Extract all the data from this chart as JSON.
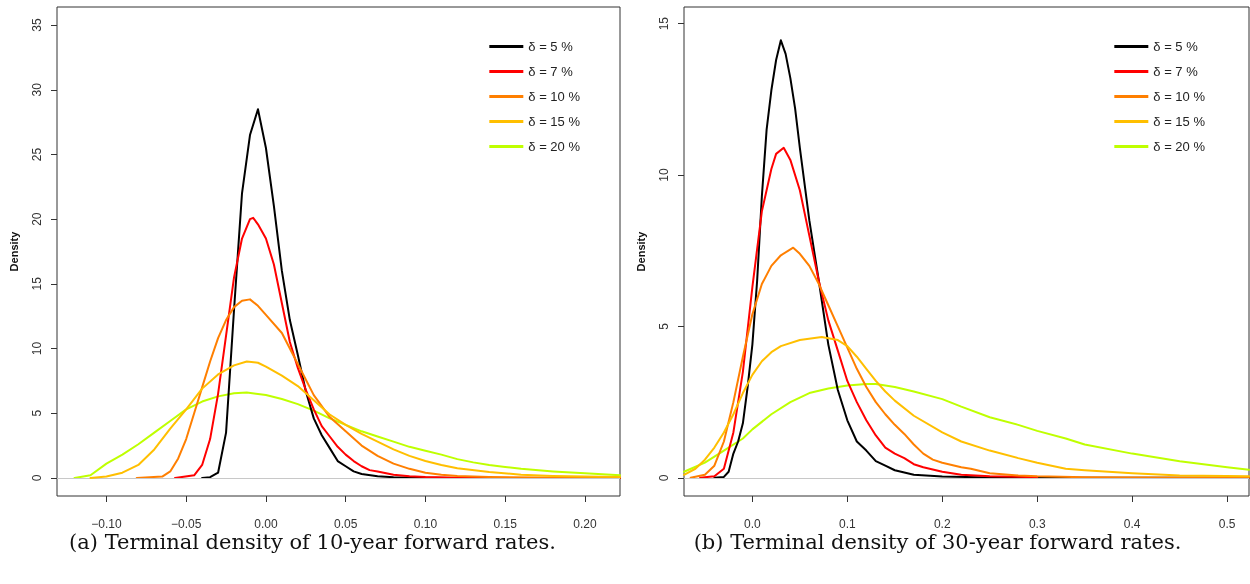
{
  "chart_data": [
    {
      "type": "line",
      "ylabel": "Density",
      "annotations": [
        "(a) Terminal density of 10-year forward rates."
      ],
      "xlim": [
        -0.131,
        0.222
      ],
      "ylim": [
        -1.4,
        36.4
      ],
      "xticks": [
        {
          "value": -0.1,
          "label": "−0.10"
        },
        {
          "value": -0.05,
          "label": "−0.05"
        },
        {
          "value": 0,
          "label": "0.00"
        },
        {
          "value": 0.05,
          "label": "0.05"
        },
        {
          "value": 0.1,
          "label": "0.10"
        },
        {
          "value": 0.15,
          "label": "0.15"
        },
        {
          "value": 0.2,
          "label": "0.20"
        }
      ],
      "yticks": [
        0,
        5,
        10,
        15,
        20,
        25,
        30,
        35
      ],
      "grid": false,
      "legend": "top right",
      "marker": "none",
      "line_style": "solid",
      "ref_lines": [
        {
          "axis": "y",
          "value": 0,
          "color": "#c8c8c8"
        }
      ],
      "series": [
        {
          "name": "δ = 5 %",
          "color": "#000000",
          "x": [
            -0.04,
            -0.035,
            -0.03,
            -0.025,
            -0.02,
            -0.015,
            -0.01,
            -0.005,
            0,
            0.005,
            0.01,
            0.015,
            0.02,
            0.025,
            0.03,
            0.035,
            0.04,
            0.045,
            0.05,
            0.055,
            0.06,
            0.07,
            0.08,
            0.1,
            0.12,
            0.222
          ],
          "values": [
            0,
            0.05,
            0.4,
            3.5,
            13,
            22,
            26.5,
            28.5,
            25.5,
            21,
            16,
            12.2,
            9.5,
            6.7,
            4.6,
            3.3,
            2.3,
            1.3,
            0.9,
            0.5,
            0.3,
            0.12,
            0.05,
            0.01,
            0,
            0
          ]
        },
        {
          "name": "δ = 7 %",
          "color": "#ff0000",
          "x": [
            -0.057,
            -0.045,
            -0.04,
            -0.035,
            -0.03,
            -0.025,
            -0.02,
            -0.015,
            -0.01,
            -0.008,
            -0.005,
            0,
            0.005,
            0.01,
            0.015,
            0.02,
            0.025,
            0.03,
            0.035,
            0.04,
            0.045,
            0.05,
            0.055,
            0.06,
            0.065,
            0.07,
            0.08,
            0.09,
            0.1,
            0.12,
            0.15,
            0.222
          ],
          "values": [
            0,
            0.2,
            1,
            3,
            6.5,
            11,
            15.5,
            18.5,
            20,
            20.1,
            19.6,
            18.5,
            16.5,
            13.5,
            10.5,
            8.5,
            6.8,
            5.3,
            4,
            3.2,
            2.4,
            1.8,
            1.3,
            0.9,
            0.6,
            0.5,
            0.25,
            0.12,
            0.06,
            0.02,
            0,
            0
          ]
        },
        {
          "name": "δ = 10 %",
          "color": "#ff7f00",
          "x": [
            -0.081,
            -0.065,
            -0.06,
            -0.055,
            -0.05,
            -0.045,
            -0.04,
            -0.035,
            -0.03,
            -0.025,
            -0.02,
            -0.015,
            -0.01,
            -0.005,
            0,
            0.01,
            0.02,
            0.03,
            0.04,
            0.05,
            0.06,
            0.07,
            0.08,
            0.09,
            0.1,
            0.11,
            0.12,
            0.14,
            0.17,
            0.222
          ],
          "values": [
            0,
            0.1,
            0.5,
            1.5,
            3,
            5,
            7,
            9,
            10.8,
            12.2,
            13.2,
            13.7,
            13.8,
            13.3,
            12.6,
            11.2,
            8.8,
            6.4,
            4.7,
            3.6,
            2.5,
            1.7,
            1.1,
            0.7,
            0.4,
            0.25,
            0.15,
            0.07,
            0.03,
            0.01
          ]
        },
        {
          "name": "δ = 15 %",
          "color": "#ffbf00",
          "x": [
            -0.11,
            -0.1,
            -0.09,
            -0.08,
            -0.07,
            -0.06,
            -0.05,
            -0.04,
            -0.03,
            -0.02,
            -0.012,
            -0.005,
            0,
            0.01,
            0.02,
            0.03,
            0.04,
            0.05,
            0.06,
            0.07,
            0.08,
            0.09,
            0.1,
            0.11,
            0.12,
            0.14,
            0.16,
            0.18,
            0.2,
            0.222
          ],
          "values": [
            0,
            0.1,
            0.4,
            1,
            2.2,
            3.8,
            5.3,
            6.9,
            8,
            8.7,
            9,
            8.9,
            8.6,
            7.9,
            7.1,
            6,
            4.9,
            4.1,
            3.4,
            2.8,
            2.2,
            1.7,
            1.3,
            1,
            0.75,
            0.45,
            0.25,
            0.15,
            0.1,
            0.07
          ]
        },
        {
          "name": "δ = 20 %",
          "color": "#bfff00",
          "x": [
            -0.12,
            -0.11,
            -0.1,
            -0.09,
            -0.08,
            -0.07,
            -0.06,
            -0.05,
            -0.04,
            -0.03,
            -0.02,
            -0.012,
            0,
            0.01,
            0.02,
            0.03,
            0.04,
            0.05,
            0.06,
            0.07,
            0.08,
            0.09,
            0.1,
            0.11,
            0.12,
            0.13,
            0.14,
            0.15,
            0.16,
            0.18,
            0.2,
            0.222
          ],
          "values": [
            0,
            0.2,
            1.1,
            1.8,
            2.6,
            3.5,
            4.4,
            5.3,
            5.9,
            6.3,
            6.55,
            6.6,
            6.4,
            6.1,
            5.7,
            5.2,
            4.6,
            4.1,
            3.6,
            3.2,
            2.8,
            2.4,
            2.1,
            1.8,
            1.45,
            1.2,
            1,
            0.85,
            0.7,
            0.5,
            0.35,
            0.2
          ]
        }
      ]
    },
    {
      "type": "line",
      "ylabel": "Density",
      "annotations": [
        "(b) Terminal density of 30-year forward rates."
      ],
      "xlim": [
        -0.072,
        0.523
      ],
      "ylim": [
        -0.6,
        15.55
      ],
      "xticks": [
        {
          "value": 0,
          "label": "0.0"
        },
        {
          "value": 0.1,
          "label": "0.1"
        },
        {
          "value": 0.2,
          "label": "0.2"
        },
        {
          "value": 0.3,
          "label": "0.3"
        },
        {
          "value": 0.4,
          "label": "0.4"
        },
        {
          "value": 0.5,
          "label": "0.5"
        }
      ],
      "yticks": [
        0,
        5,
        10,
        15
      ],
      "grid": false,
      "legend": "top right",
      "marker": "none",
      "line_style": "solid",
      "ref_lines": [
        {
          "axis": "y",
          "value": 0,
          "color": "#c8c8c8"
        }
      ],
      "series": [
        {
          "name": "δ = 5 %",
          "color": "#000000",
          "x": [
            -0.04,
            -0.03,
            -0.025,
            -0.02,
            -0.015,
            -0.01,
            -0.005,
            0,
            0.005,
            0.01,
            0.015,
            0.02,
            0.025,
            0.03,
            0.035,
            0.04,
            0.045,
            0.05,
            0.06,
            0.07,
            0.08,
            0.09,
            0.1,
            0.11,
            0.12,
            0.13,
            0.14,
            0.15,
            0.17,
            0.2,
            0.25,
            0.3,
            0.523
          ],
          "values": [
            0,
            0.03,
            0.2,
            0.8,
            1.2,
            1.8,
            3,
            4.4,
            6.5,
            9.3,
            11.5,
            12.8,
            13.8,
            14.45,
            14,
            13.2,
            12.2,
            10.9,
            8.5,
            6.5,
            4.4,
            2.9,
            1.9,
            1.2,
            0.9,
            0.55,
            0.4,
            0.25,
            0.1,
            0.04,
            0.01,
            0,
            0
          ]
        },
        {
          "name": "δ = 7 %",
          "color": "#ff0000",
          "x": [
            -0.055,
            -0.04,
            -0.03,
            -0.02,
            -0.01,
            0,
            0.01,
            0.02,
            0.025,
            0.033,
            0.04,
            0.05,
            0.06,
            0.07,
            0.08,
            0.09,
            0.1,
            0.11,
            0.12,
            0.13,
            0.14,
            0.15,
            0.16,
            0.17,
            0.18,
            0.2,
            0.22,
            0.25,
            0.3
          ],
          "values": [
            0,
            0.05,
            0.3,
            1.5,
            3.5,
            6.3,
            8.8,
            10.2,
            10.7,
            10.9,
            10.5,
            9.5,
            8,
            6.5,
            5.2,
            4.2,
            3.2,
            2.5,
            1.9,
            1.4,
            1,
            0.8,
            0.65,
            0.45,
            0.35,
            0.2,
            0.1,
            0.05,
            0.02
          ]
        },
        {
          "name": "δ = 10 %",
          "color": "#ff7f00",
          "x": [
            -0.065,
            -0.05,
            -0.04,
            -0.03,
            -0.02,
            -0.01,
            0,
            0.01,
            0.02,
            0.03,
            0.043,
            0.05,
            0.06,
            0.07,
            0.08,
            0.09,
            0.1,
            0.11,
            0.12,
            0.13,
            0.14,
            0.15,
            0.16,
            0.17,
            0.18,
            0.19,
            0.2,
            0.22,
            0.23,
            0.25,
            0.28,
            0.3,
            0.35,
            0.4,
            0.523
          ],
          "values": [
            0,
            0.1,
            0.4,
            1.2,
            2.5,
            4,
            5.4,
            6.4,
            7,
            7.35,
            7.6,
            7.4,
            7,
            6.4,
            5.7,
            5,
            4.3,
            3.6,
            3,
            2.5,
            2.1,
            1.75,
            1.45,
            1.1,
            0.8,
            0.6,
            0.5,
            0.35,
            0.3,
            0.15,
            0.08,
            0.05,
            0.02,
            0.01,
            0
          ]
        },
        {
          "name": "δ = 15 %",
          "color": "#ffbf00",
          "x": [
            -0.072,
            -0.06,
            -0.05,
            -0.04,
            -0.03,
            -0.02,
            -0.01,
            0,
            0.01,
            0.02,
            0.03,
            0.05,
            0.073,
            0.09,
            0.1,
            0.11,
            0.12,
            0.13,
            0.14,
            0.15,
            0.17,
            0.2,
            0.22,
            0.25,
            0.28,
            0.3,
            0.33,
            0.35,
            0.4,
            0.45,
            0.523
          ],
          "values": [
            0.1,
            0.3,
            0.6,
            1,
            1.5,
            2.1,
            2.8,
            3.4,
            3.85,
            4.15,
            4.35,
            4.55,
            4.65,
            4.55,
            4.35,
            4,
            3.6,
            3.2,
            2.85,
            2.55,
            2.05,
            1.5,
            1.2,
            0.9,
            0.65,
            0.5,
            0.3,
            0.25,
            0.15,
            0.08,
            0.05
          ]
        },
        {
          "name": "δ = 20 %",
          "color": "#bfff00",
          "x": [
            -0.072,
            -0.05,
            -0.03,
            -0.01,
            0,
            0.02,
            0.04,
            0.06,
            0.08,
            0.1,
            0.12,
            0.13,
            0.15,
            0.17,
            0.2,
            0.22,
            0.25,
            0.28,
            0.3,
            0.33,
            0.35,
            0.4,
            0.45,
            0.5,
            0.523
          ],
          "values": [
            0.2,
            0.5,
            0.9,
            1.3,
            1.6,
            2.1,
            2.5,
            2.8,
            2.95,
            3.05,
            3.1,
            3.1,
            3,
            2.85,
            2.6,
            2.35,
            2,
            1.75,
            1.55,
            1.3,
            1.1,
            0.8,
            0.55,
            0.35,
            0.27
          ]
        }
      ]
    }
  ]
}
